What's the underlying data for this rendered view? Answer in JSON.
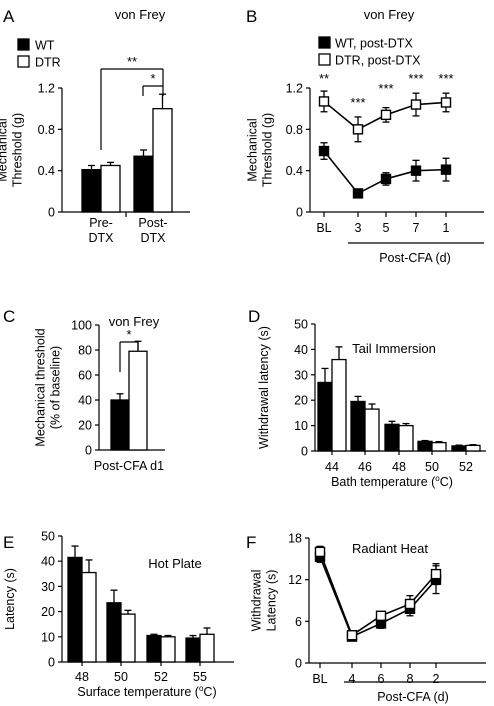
{
  "chart_data": [
    {
      "panel": "A",
      "type": "bar",
      "title": "von Frey",
      "ylabel": [
        "Mechanical",
        "Threshold (g)"
      ],
      "ylim": [
        0,
        1.2
      ],
      "yticks": [
        "0",
        "0.4",
        "0.8",
        "1.2"
      ],
      "categories": [
        [
          "Pre-",
          "DTX"
        ],
        [
          "Post-",
          "DTX"
        ]
      ],
      "series": [
        {
          "name": "WT",
          "values": [
            0.41,
            0.54
          ],
          "errors": [
            0.04,
            0.06
          ],
          "fill": "#000000"
        },
        {
          "name": "DTR",
          "values": [
            0.45,
            1.0
          ],
          "errors": [
            0.03,
            0.14
          ],
          "fill": "#ffffff"
        }
      ],
      "significance": [
        {
          "label": "**",
          "type": "across-groups"
        },
        {
          "label": "*",
          "type": "within-group",
          "group": 1
        }
      ]
    },
    {
      "panel": "B",
      "type": "line",
      "title": "von Frey",
      "ylabel": [
        "Mechanical",
        "Threshold (g)"
      ],
      "ylim": [
        0,
        1.2
      ],
      "yticks": [
        "0",
        "0.4",
        "0.8",
        "1.2"
      ],
      "categories": [
        "BL",
        "3",
        "5",
        "7",
        "1"
      ],
      "xlabel": "Post-CFA (d)",
      "xlabel_span": [
        1,
        4
      ],
      "series": [
        {
          "name": "WT, post-DTX",
          "values": [
            0.59,
            0.18,
            0.32,
            0.4,
            0.41
          ],
          "errors": [
            0.08,
            0.03,
            0.06,
            0.1,
            0.11
          ],
          "marker": "filled-square"
        },
        {
          "name": "DTR, post-DTX",
          "values": [
            1.07,
            0.8,
            0.94,
            1.04,
            1.06
          ],
          "errors": [
            0.1,
            0.12,
            0.07,
            0.11,
            0.09
          ],
          "marker": "open-square"
        }
      ],
      "significance": [
        "**",
        "***",
        "***",
        "***",
        "***"
      ]
    },
    {
      "panel": "C",
      "type": "bar",
      "title": "von Frey",
      "ylabel": [
        "Mechanical threshold",
        "(% of baseline)"
      ],
      "ylim": [
        0,
        100
      ],
      "yticks": [
        "0",
        "20",
        "40",
        "60",
        "80",
        "100"
      ],
      "categories": [
        "Post-CFA d1"
      ],
      "series": [
        {
          "name": "WT",
          "values": [
            40
          ],
          "errors": [
            5
          ],
          "fill": "#000000"
        },
        {
          "name": "DTR",
          "values": [
            79
          ],
          "errors": [
            8
          ],
          "fill": "#ffffff"
        }
      ],
      "significance": [
        {
          "label": "*",
          "type": "within-group",
          "group": 0
        }
      ]
    },
    {
      "panel": "D",
      "type": "bar",
      "title": "Tail Immersion",
      "ylabel": [
        "Withdrawal latency (s)"
      ],
      "ylim": [
        0,
        50
      ],
      "yticks": [
        "0",
        "10",
        "20",
        "30",
        "40",
        "50"
      ],
      "categories": [
        "44",
        "46",
        "48",
        "50",
        "52"
      ],
      "xlabel": "Bath temperature (°C)",
      "series": [
        {
          "name": "WT",
          "values": [
            27,
            19.5,
            10.5,
            3.8,
            2.0
          ],
          "errors": [
            5.5,
            2.0,
            1.2,
            0.3,
            0.3
          ],
          "fill": "#000000"
        },
        {
          "name": "DTR",
          "values": [
            36,
            16.5,
            10.0,
            3.3,
            2.2
          ],
          "errors": [
            5.0,
            2.0,
            0.8,
            0.4,
            0.3
          ],
          "fill": "#ffffff"
        }
      ]
    },
    {
      "panel": "E",
      "type": "bar",
      "title": "Hot Plate",
      "ylabel": [
        "Latency (s)"
      ],
      "ylim": [
        0,
        50
      ],
      "yticks": [
        "0",
        "10",
        "20",
        "30",
        "40",
        "50"
      ],
      "categories": [
        "48",
        "50",
        "52",
        "55"
      ],
      "xlabel": "Surface temperature (°C)",
      "series": [
        {
          "name": "WT",
          "values": [
            41.5,
            23.5,
            10.5,
            9.5
          ],
          "errors": [
            4.5,
            5.0,
            0.5,
            1.0
          ],
          "fill": "#000000"
        },
        {
          "name": "DTR",
          "values": [
            35.5,
            19.0,
            10.0,
            11.0
          ],
          "errors": [
            5.0,
            1.5,
            0.5,
            2.5
          ],
          "fill": "#ffffff"
        }
      ]
    },
    {
      "panel": "F",
      "type": "line",
      "title": "Radiant Heat",
      "ylabel": [
        "Withdrawal",
        "Latency (s)"
      ],
      "ylim": [
        0,
        18
      ],
      "yticks": [
        "0",
        "6",
        "12",
        "18"
      ],
      "categories": [
        "BL",
        "4",
        "6",
        "8",
        "2"
      ],
      "xlabel": "Post-CFA (d)",
      "xlabel_span": [
        1,
        4
      ],
      "series": [
        {
          "values": [
            15.3,
            3.8,
            5.7,
            7.8,
            12.0
          ],
          "errors": [
            0.8,
            0.4,
            0.7,
            1.0,
            2.0
          ],
          "marker": "filled-square"
        },
        {
          "values": [
            16.0,
            4.0,
            6.8,
            8.5,
            12.8
          ],
          "errors": [
            0.8,
            0.4,
            0.6,
            1.2,
            1.5
          ],
          "marker": "open-square"
        }
      ]
    }
  ]
}
